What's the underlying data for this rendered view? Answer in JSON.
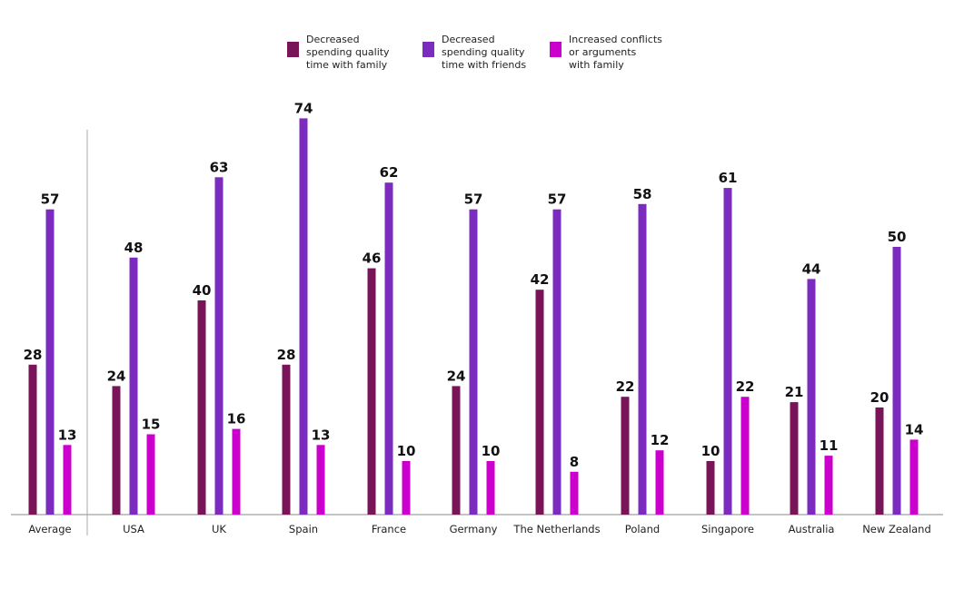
{
  "chart_data": {
    "type": "bar",
    "title": "",
    "xlabel": "",
    "ylabel": "",
    "ylim": [
      0,
      80
    ],
    "grid": false,
    "legend_position": "top-center",
    "categories": [
      "Average",
      "USA",
      "UK",
      "Spain",
      "France",
      "Germany",
      "The Netherlands",
      "Poland",
      "Singapore",
      "Australia",
      "New Zealand"
    ],
    "series": [
      {
        "name": "Decreased spending quality time with family",
        "legend_lines": [
          "Decreased",
          "spending quality",
          "time with family"
        ],
        "color": "#7a1458",
        "values": [
          28,
          24,
          40,
          28,
          46,
          24,
          42,
          22,
          10,
          21,
          20
        ]
      },
      {
        "name": "Decreased spending quality time with friends",
        "legend_lines": [
          "Decreased",
          "spending quality",
          "time with friends"
        ],
        "color": "#7b2cbf",
        "values": [
          57,
          48,
          63,
          74,
          62,
          57,
          57,
          58,
          61,
          44,
          50
        ]
      },
      {
        "name": "Increased conflicts or arguments with family",
        "legend_lines": [
          "Increased conflicts",
          "or arguments",
          "with family"
        ],
        "color": "#cc00cc",
        "values": [
          13,
          15,
          16,
          13,
          10,
          10,
          8,
          12,
          22,
          11,
          14
        ]
      }
    ]
  }
}
